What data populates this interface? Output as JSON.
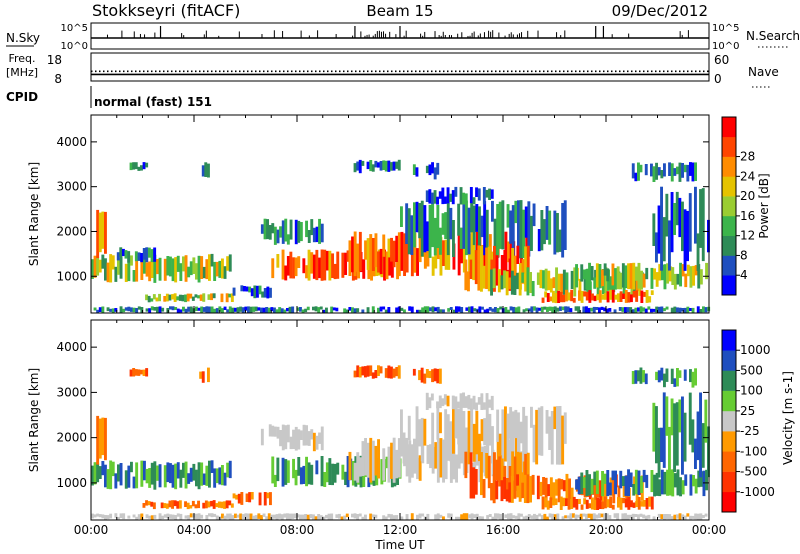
{
  "header": {
    "station": "Stokkseyri (fitACF)",
    "beam": "Beam 15",
    "date": "09/Dec/2012"
  },
  "top_panels": {
    "nsky_label": "N.Sky",
    "nsearch_label": "N.Search",
    "nsky_ticks": [
      "10^5",
      "10^0"
    ],
    "nsearch_ticks": [
      "10^5",
      "10^0"
    ],
    "freq_label_1": "Freq.",
    "freq_label_2": "[MHz]",
    "freq_ticks": [
      "18",
      "8"
    ],
    "nave_label": "Nave",
    "nave_ticks": [
      "60",
      "0"
    ],
    "cpid_label": "CPID",
    "cpid_value": "normal (fast) 151",
    "frequency_mhz": 10,
    "nave": 20
  },
  "colors": {
    "power": [
      "#0000ff",
      "#1f4fbf",
      "#2e8b57",
      "#3cb44b",
      "#9acd32",
      "#e5c300",
      "#ff8c00",
      "#ff4500",
      "#ff0000"
    ],
    "velocity": [
      "#0000ff",
      "#1f4fbf",
      "#2e8b57",
      "#66cc33",
      "#c8c8c8",
      "#ff9a00",
      "#ff6600",
      "#ff3300",
      "#ff0000"
    ]
  },
  "chart_data": [
    {
      "type": "heatmap",
      "title": "Power",
      "ylabel": "Slant Range [km]",
      "xlabel": "",
      "yticks": [
        "1000",
        "2000",
        "3000",
        "4000"
      ],
      "ylim": [
        180,
        4600
      ],
      "xlim_hours": [
        0,
        24
      ],
      "colorbar_label": "Power [dB]",
      "colorbar_ticks": [
        "4",
        "8",
        "12",
        "16",
        "20",
        "24",
        "28"
      ],
      "bands": [
        {
          "t": [
            0.0,
            5.6
          ],
          "r": [
            850,
            1500
          ],
          "v": "med"
        },
        {
          "t": [
            0.2,
            0.6
          ],
          "r": [
            1400,
            2500
          ],
          "v": "hi"
        },
        {
          "t": [
            1.0,
            2.5
          ],
          "r": [
            1300,
            1650
          ],
          "v": "low"
        },
        {
          "t": [
            2.0,
            5.5
          ],
          "r": [
            420,
            620
          ],
          "v": "med"
        },
        {
          "t": [
            5.5,
            7.0
          ],
          "r": [
            500,
            800
          ],
          "v": "low"
        },
        {
          "t": [
            6.6,
            9.0
          ],
          "r": [
            1700,
            2300
          ],
          "v": "low"
        },
        {
          "t": [
            7.0,
            12.0
          ],
          "r": [
            900,
            1600
          ],
          "v": "hi"
        },
        {
          "t": [
            10.0,
            17.0
          ],
          "r": [
            1000,
            2000
          ],
          "v": "hi"
        },
        {
          "t": [
            12.0,
            18.5
          ],
          "r": [
            1400,
            2700
          ],
          "v": "low"
        },
        {
          "t": [
            13.0,
            15.6
          ],
          "r": [
            2600,
            3000
          ],
          "v": "low"
        },
        {
          "t": [
            14.5,
            17.0
          ],
          "r": [
            650,
            1700
          ],
          "v": "hi"
        },
        {
          "t": [
            15.5,
            21.5
          ],
          "r": [
            550,
            1200
          ],
          "v": "med"
        },
        {
          "t": [
            17.5,
            21.8
          ],
          "r": [
            400,
            700
          ],
          "v": "hi"
        },
        {
          "t": [
            18.8,
            24.0
          ],
          "r": [
            700,
            1300
          ],
          "v": "med"
        },
        {
          "t": [
            21.8,
            24.0
          ],
          "r": [
            1100,
            3000
          ],
          "v": "low"
        },
        {
          "t": [
            0.0,
            24.0
          ],
          "r": [
            180,
            330
          ],
          "v": "low"
        },
        {
          "t": [
            1.5,
            2.2
          ],
          "r": [
            3350,
            3550
          ],
          "v": "low"
        },
        {
          "t": [
            4.2,
            4.6
          ],
          "r": [
            3200,
            3550
          ],
          "v": "low"
        },
        {
          "t": [
            10.2,
            12.0
          ],
          "r": [
            3300,
            3600
          ],
          "v": "low"
        },
        {
          "t": [
            12.5,
            13.6
          ],
          "r": [
            3150,
            3550
          ],
          "v": "low"
        },
        {
          "t": [
            21.0,
            23.5
          ],
          "r": [
            3100,
            3550
          ],
          "v": "low"
        }
      ]
    },
    {
      "type": "heatmap",
      "title": "Velocity",
      "ylabel": "Slant Range [km]",
      "xlabel": "Time UT",
      "xticks": [
        "00:00",
        "04:00",
        "08:00",
        "12:00",
        "16:00",
        "20:00",
        "00:00"
      ],
      "yticks": [
        "1000",
        "2000",
        "3000",
        "4000"
      ],
      "ylim": [
        180,
        4600
      ],
      "xlim_hours": [
        0,
        24
      ],
      "colorbar_label": "Velocity [m s-1]",
      "colorbar_ticks": [
        "1000",
        "500",
        "100",
        "25",
        "-25",
        "-100",
        "-500",
        "-1000"
      ],
      "bands": [
        {
          "t": [
            0.0,
            5.6
          ],
          "r": [
            850,
            1500
          ],
          "v": "pos"
        },
        {
          "t": [
            0.2,
            0.6
          ],
          "r": [
            1400,
            2500
          ],
          "v": "neg"
        },
        {
          "t": [
            2.0,
            5.5
          ],
          "r": [
            420,
            620
          ],
          "v": "neg"
        },
        {
          "t": [
            5.5,
            7.0
          ],
          "r": [
            500,
            800
          ],
          "v": "neg"
        },
        {
          "t": [
            6.6,
            9.0
          ],
          "r": [
            1700,
            2300
          ],
          "v": "gray"
        },
        {
          "t": [
            7.0,
            12.0
          ],
          "r": [
            900,
            1600
          ],
          "v": "pos"
        },
        {
          "t": [
            10.0,
            17.0
          ],
          "r": [
            1000,
            2000
          ],
          "v": "gray"
        },
        {
          "t": [
            12.0,
            18.5
          ],
          "r": [
            1400,
            2700
          ],
          "v": "gray"
        },
        {
          "t": [
            13.0,
            15.6
          ],
          "r": [
            2600,
            3000
          ],
          "v": "gray"
        },
        {
          "t": [
            14.5,
            17.0
          ],
          "r": [
            650,
            1700
          ],
          "v": "neg"
        },
        {
          "t": [
            15.5,
            21.5
          ],
          "r": [
            550,
            1200
          ],
          "v": "neg"
        },
        {
          "t": [
            17.5,
            21.8
          ],
          "r": [
            400,
            700
          ],
          "v": "neg"
        },
        {
          "t": [
            18.8,
            24.0
          ],
          "r": [
            700,
            1300
          ],
          "v": "pos"
        },
        {
          "t": [
            21.8,
            24.0
          ],
          "r": [
            1100,
            3000
          ],
          "v": "pos"
        },
        {
          "t": [
            0.0,
            24.0
          ],
          "r": [
            180,
            330
          ],
          "v": "gray"
        },
        {
          "t": [
            1.5,
            2.2
          ],
          "r": [
            3350,
            3550
          ],
          "v": "neg"
        },
        {
          "t": [
            4.2,
            4.6
          ],
          "r": [
            3200,
            3550
          ],
          "v": "neg"
        },
        {
          "t": [
            10.2,
            12.0
          ],
          "r": [
            3300,
            3600
          ],
          "v": "neg"
        },
        {
          "t": [
            12.5,
            13.6
          ],
          "r": [
            3150,
            3550
          ],
          "v": "neg"
        },
        {
          "t": [
            21.0,
            23.5
          ],
          "r": [
            3100,
            3550
          ],
          "v": "pos"
        }
      ]
    }
  ]
}
